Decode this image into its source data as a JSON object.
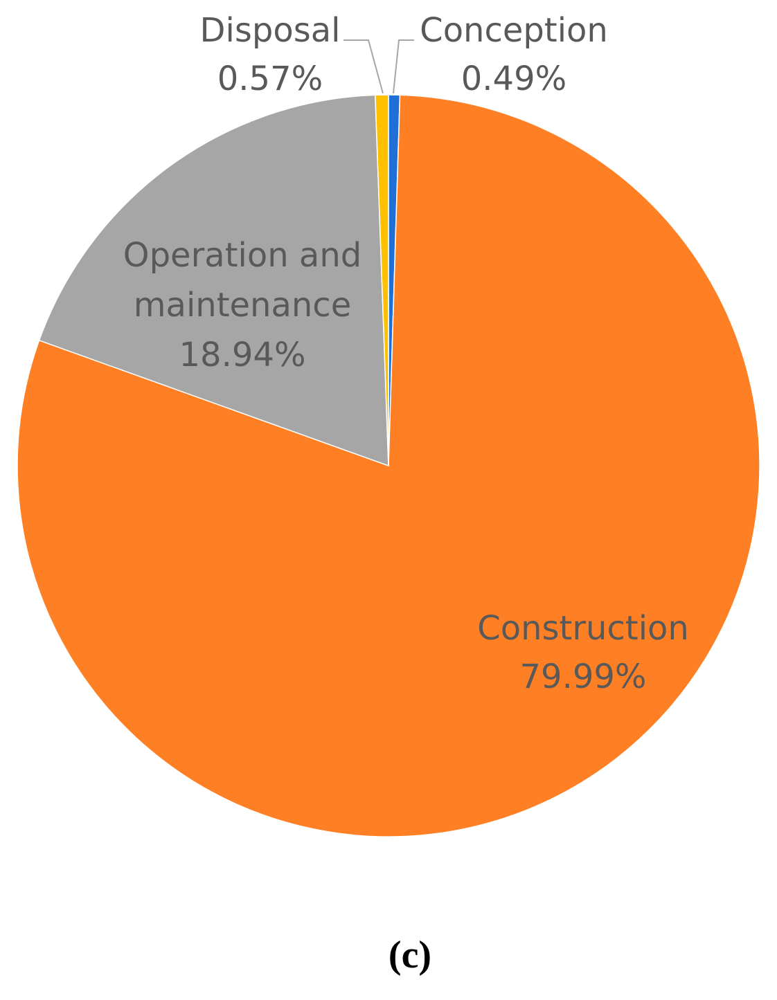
{
  "chart_data": {
    "type": "pie",
    "start": "12 o'clock",
    "direction": "clockwise",
    "slices": [
      {
        "name": "Conception",
        "value": 0.49,
        "value_label": "0.49%",
        "color": "#1F6FD6"
      },
      {
        "name": "Construction",
        "value": 79.99,
        "value_label": "79.99%",
        "color": "#FF7F24"
      },
      {
        "name": "Operation and maintenance",
        "name_lines": [
          "Operation and",
          "maintenance"
        ],
        "value": 18.94,
        "value_label": "18.94%",
        "color": "#A6A6A6"
      },
      {
        "name": "Disposal",
        "value": 0.57,
        "value_label": "0.57%",
        "color": "#FFC000"
      }
    ],
    "label_color": "#595959",
    "leader_line_color": "#A6A6A6"
  },
  "caption": "(c)"
}
